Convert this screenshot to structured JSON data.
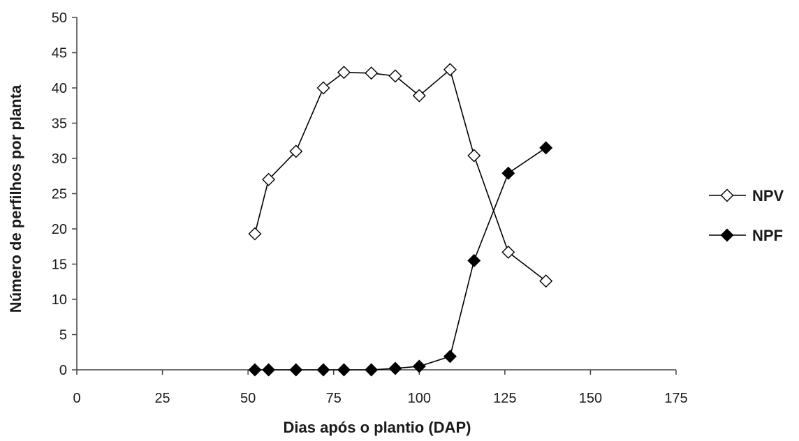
{
  "chart_data": {
    "type": "line",
    "title": "",
    "xlabel": "Dias após o plantio (DAP)",
    "ylabel": "Número de perfilhos por planta",
    "xlim": [
      0,
      175
    ],
    "ylim": [
      0,
      50
    ],
    "xticks": [
      0,
      25,
      50,
      75,
      100,
      125,
      150,
      175
    ],
    "yticks": [
      0,
      5,
      10,
      15,
      20,
      25,
      30,
      35,
      40,
      45,
      50
    ],
    "grid": false,
    "legend_position": "right",
    "series": [
      {
        "name": "NPV",
        "marker": "diamond-open",
        "color": "#000000",
        "x": [
          52,
          56,
          64,
          72,
          78,
          86,
          93,
          100,
          109,
          116,
          126,
          137
        ],
        "y": [
          19.3,
          27.0,
          31.0,
          40.0,
          42.2,
          42.1,
          41.7,
          38.9,
          42.6,
          30.4,
          16.7,
          12.6
        ]
      },
      {
        "name": "NPF",
        "marker": "diamond-filled",
        "color": "#000000",
        "x": [
          52,
          56,
          64,
          72,
          78,
          86,
          93,
          100,
          109,
          116,
          126,
          137
        ],
        "y": [
          0.0,
          0.0,
          0.0,
          0.0,
          0.0,
          0.0,
          0.2,
          0.5,
          1.9,
          15.5,
          27.9,
          31.5
        ]
      }
    ]
  }
}
